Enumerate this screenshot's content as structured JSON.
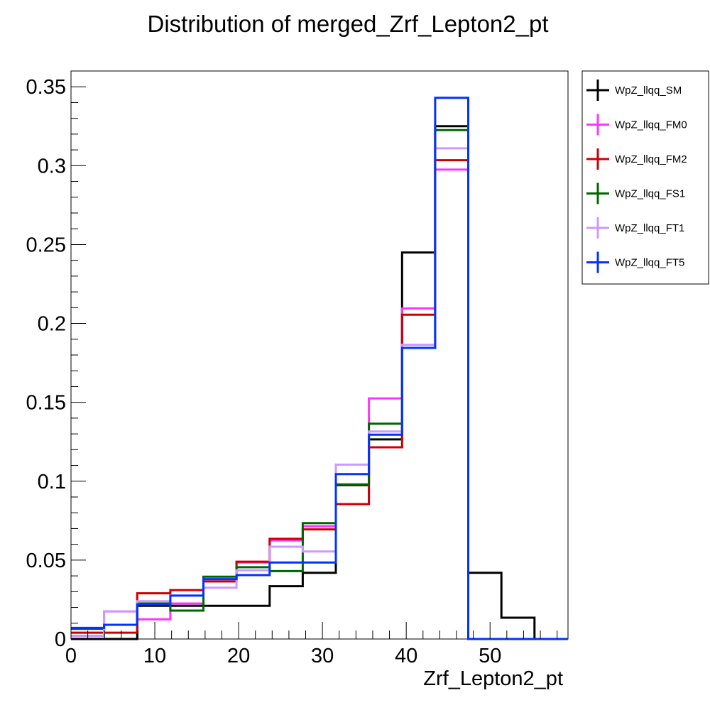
{
  "chart_data": {
    "type": "histogram",
    "title": "Distribution of merged_Zrf_Lepton2_pt",
    "xlabel": "Zrf_Lepton2_pt",
    "ylabel": "",
    "xlim": [
      0,
      59.3
    ],
    "ylim": [
      0,
      0.36
    ],
    "x_ticks": [
      0,
      10,
      20,
      30,
      40,
      50
    ],
    "y_ticks": [
      0,
      0.05,
      0.1,
      0.15,
      0.2,
      0.25,
      0.3,
      0.35
    ],
    "y_tick_labels": [
      "0",
      "0.05",
      "0.1",
      "0.15",
      "0.2",
      "0.25",
      "0.3",
      "0.35"
    ],
    "bin_edges": [
      0,
      3.95,
      7.9,
      11.85,
      15.8,
      19.75,
      23.7,
      27.65,
      31.6,
      35.55,
      39.5,
      43.45,
      47.4,
      51.35,
      55.3,
      59.3
    ],
    "legend_position": "outside-right-top",
    "grid": false,
    "series": [
      {
        "name": "WpZ_llqq_SM",
        "color": "#000000",
        "values": [
          0.0,
          0.0,
          0.021,
          0.021,
          0.021,
          0.021,
          0.0335,
          0.042,
          0.0975,
          0.1265,
          0.245,
          0.325,
          0.042,
          0.0135,
          0.0
        ]
      },
      {
        "name": "WpZ_llqq_FM0",
        "color": "#ff33ff",
        "values": [
          0.002,
          0.0175,
          0.0125,
          0.0225,
          0.0365,
          0.0485,
          0.0625,
          0.0715,
          0.0855,
          0.1525,
          0.2095,
          0.2975,
          0.0,
          0.0,
          0.0
        ]
      },
      {
        "name": "WpZ_llqq_FM2",
        "color": "#cc0000",
        "values": [
          0.004,
          0.004,
          0.029,
          0.031,
          0.0365,
          0.049,
          0.0635,
          0.0695,
          0.0855,
          0.1215,
          0.2055,
          0.3035,
          0.0,
          0.0,
          0.0
        ]
      },
      {
        "name": "WpZ_llqq_FS1",
        "color": "#006600",
        "values": [
          0.0065,
          0.009,
          0.0225,
          0.018,
          0.0395,
          0.0455,
          0.043,
          0.0735,
          0.098,
          0.1365,
          0.1845,
          0.3225,
          0.0,
          0.0,
          0.0
        ]
      },
      {
        "name": "WpZ_llqq_FT1",
        "color": "#cc99ff",
        "values": [
          0.002,
          0.0175,
          0.024,
          0.0275,
          0.0325,
          0.0435,
          0.0585,
          0.0555,
          0.1105,
          0.1315,
          0.1865,
          0.311,
          0.0,
          0.0,
          0.0
        ]
      },
      {
        "name": "WpZ_llqq_FT5",
        "color": "#0033ff",
        "values": [
          0.007,
          0.009,
          0.022,
          0.0275,
          0.038,
          0.0405,
          0.0485,
          0.0485,
          0.1045,
          0.1295,
          0.1845,
          0.343,
          0.0,
          0.0,
          0.0
        ]
      }
    ]
  }
}
